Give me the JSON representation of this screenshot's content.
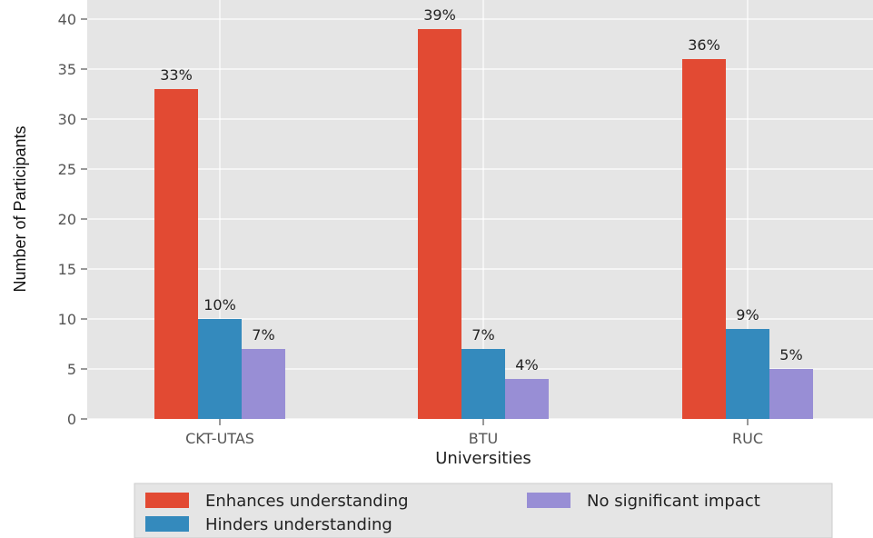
{
  "chart_data": {
    "type": "bar",
    "categories": [
      "CKT-UTAS",
      "BTU",
      "RUC"
    ],
    "series": [
      {
        "name": "Enhances understanding",
        "values": [
          33,
          39,
          36
        ],
        "labels": [
          "33%",
          "39%",
          "36%"
        ],
        "color": "#E24A33"
      },
      {
        "name": "Hinders understanding",
        "values": [
          10,
          7,
          9
        ],
        "labels": [
          "10%",
          "7%",
          "9%"
        ],
        "color": "#348ABD"
      },
      {
        "name": "No significant impact",
        "values": [
          7,
          4,
          5
        ],
        "labels": [
          "7%",
          "4%",
          "5%"
        ],
        "color": "#988ED5"
      }
    ],
    "xlabel": "Universities",
    "ylabel": "Number of Participants",
    "ylim": [
      0,
      40
    ],
    "yticks": [
      0,
      5,
      10,
      15,
      20,
      25,
      30,
      35,
      40
    ],
    "grid": true,
    "style": "ggplot",
    "plot_background": "#E5E5E5",
    "grid_color": "#FFFFFF",
    "legend_position": "bottom-center"
  }
}
